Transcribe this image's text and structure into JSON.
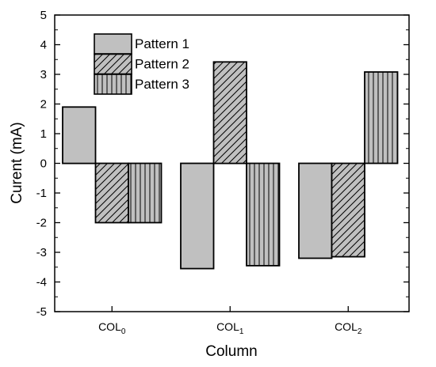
{
  "chart_data": {
    "type": "bar",
    "categories": [
      {
        "base": "COL",
        "sub": "0"
      },
      {
        "base": "COL",
        "sub": "1"
      },
      {
        "base": "COL",
        "sub": "2"
      }
    ],
    "series": [
      {
        "name": "Pattern 1",
        "values": [
          1.9,
          -3.55,
          -3.2
        ],
        "fill": "#c0c0c0",
        "pattern": "solid"
      },
      {
        "name": "Pattern 2",
        "values": [
          -2.0,
          3.42,
          -3.15
        ],
        "fill": "#c0c0c0",
        "pattern": "diagonal-hatch"
      },
      {
        "name": "Pattern 3",
        "values": [
          -2.0,
          -3.45,
          3.08
        ],
        "fill": "#c0c0c0",
        "pattern": "vertical-lines"
      }
    ],
    "xlabel": "Column",
    "ylabel": "Curent (mA)",
    "ylim": [
      -5,
      5
    ],
    "yticks": [
      -5,
      -4,
      -3,
      -2,
      -1,
      0,
      1,
      2,
      3,
      4,
      5
    ],
    "grid": false,
    "legend": "top-left"
  }
}
